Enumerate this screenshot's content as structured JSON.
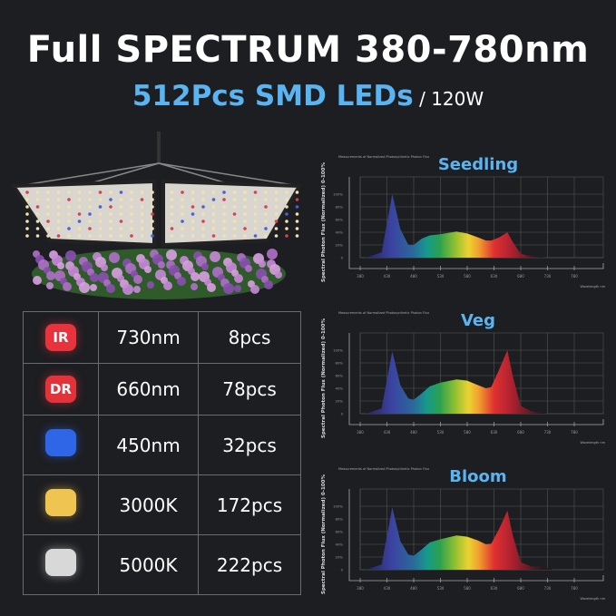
{
  "headline": "Full SPECTRUM 380-780nm",
  "subheadline": {
    "main": "512Pcs SMD LEDs",
    "suffix": " / 120W"
  },
  "led_table": [
    {
      "chip": "IR",
      "color": "#e8323c",
      "wavelength": "730nm",
      "count": "8pcs"
    },
    {
      "chip": "DR",
      "color": "#e2323a",
      "wavelength": "660nm",
      "count": "78pcs"
    },
    {
      "chip": "",
      "color": "#2f66e8",
      "wavelength": "450nm",
      "count": "32pcs"
    },
    {
      "chip": "",
      "color": "#f0c450",
      "wavelength": "3000K",
      "count": "172pcs"
    },
    {
      "chip": "",
      "color": "#d8d8d8",
      "wavelength": "5000K",
      "count": "222pcs"
    }
  ],
  "chart_data": [
    {
      "type": "area",
      "title": "Seedling",
      "note": "Measurements of Normalized Photosynthetic Photon Flux",
      "ylabel": "Spectral Photon Flux (Normalized) 0-100%",
      "xlabel": "Wavelength nm",
      "xlim": [
        380,
        780
      ],
      "ylim": [
        0,
        100
      ],
      "xticks": [
        380,
        430,
        480,
        530,
        580,
        630,
        680,
        730,
        780
      ],
      "yticks": [
        "0",
        "20%",
        "40%",
        "60%",
        "80%",
        "100%"
      ],
      "x": [
        390,
        420,
        440,
        455,
        470,
        480,
        495,
        510,
        530,
        560,
        580,
        600,
        615,
        625,
        640,
        655,
        665,
        680,
        700,
        730
      ],
      "y": [
        0,
        8,
        100,
        45,
        20,
        20,
        30,
        35,
        37,
        41,
        38,
        32,
        27,
        27,
        32,
        40,
        25,
        6,
        2,
        0
      ]
    },
    {
      "type": "area",
      "title": "Veg",
      "note": "Measurements of Normalized Photosynthetic Photon Flux",
      "ylabel": "Spectral Photon Flux (Normalized) 0-100%",
      "xlabel": "Wavelength nm",
      "xlim": [
        380,
        780
      ],
      "ylim": [
        0,
        100
      ],
      "xticks": [
        380,
        430,
        480,
        530,
        580,
        630,
        680,
        730,
        780
      ],
      "yticks": [
        "0",
        "20%",
        "40%",
        "60%",
        "80%",
        "100%"
      ],
      "x": [
        390,
        420,
        440,
        455,
        470,
        480,
        495,
        510,
        530,
        560,
        580,
        600,
        615,
        625,
        640,
        655,
        665,
        680,
        700,
        730
      ],
      "y": [
        0,
        8,
        98,
        45,
        24,
        22,
        32,
        43,
        49,
        54,
        52,
        45,
        40,
        42,
        70,
        100,
        60,
        12,
        4,
        0
      ]
    },
    {
      "type": "area",
      "title": "Bloom",
      "note": "Measurements of Normalized Photosynthetic Photon Flux",
      "ylabel": "Spectral Photon Flux (Normalized) 0-100%",
      "xlabel": "Wavelength nm",
      "xlim": [
        380,
        780
      ],
      "ylim": [
        0,
        100
      ],
      "xticks": [
        380,
        430,
        480,
        530,
        580,
        630,
        680,
        730,
        780
      ],
      "yticks": [
        "0",
        "20%",
        "40%",
        "60%",
        "80%",
        "100%"
      ],
      "x": [
        390,
        420,
        440,
        455,
        470,
        480,
        495,
        510,
        530,
        560,
        580,
        600,
        615,
        625,
        640,
        655,
        665,
        680,
        700,
        720,
        740
      ],
      "y": [
        0,
        8,
        98,
        45,
        24,
        22,
        32,
        43,
        48,
        54,
        52,
        46,
        40,
        41,
        65,
        93,
        55,
        12,
        5,
        5,
        0
      ]
    }
  ]
}
